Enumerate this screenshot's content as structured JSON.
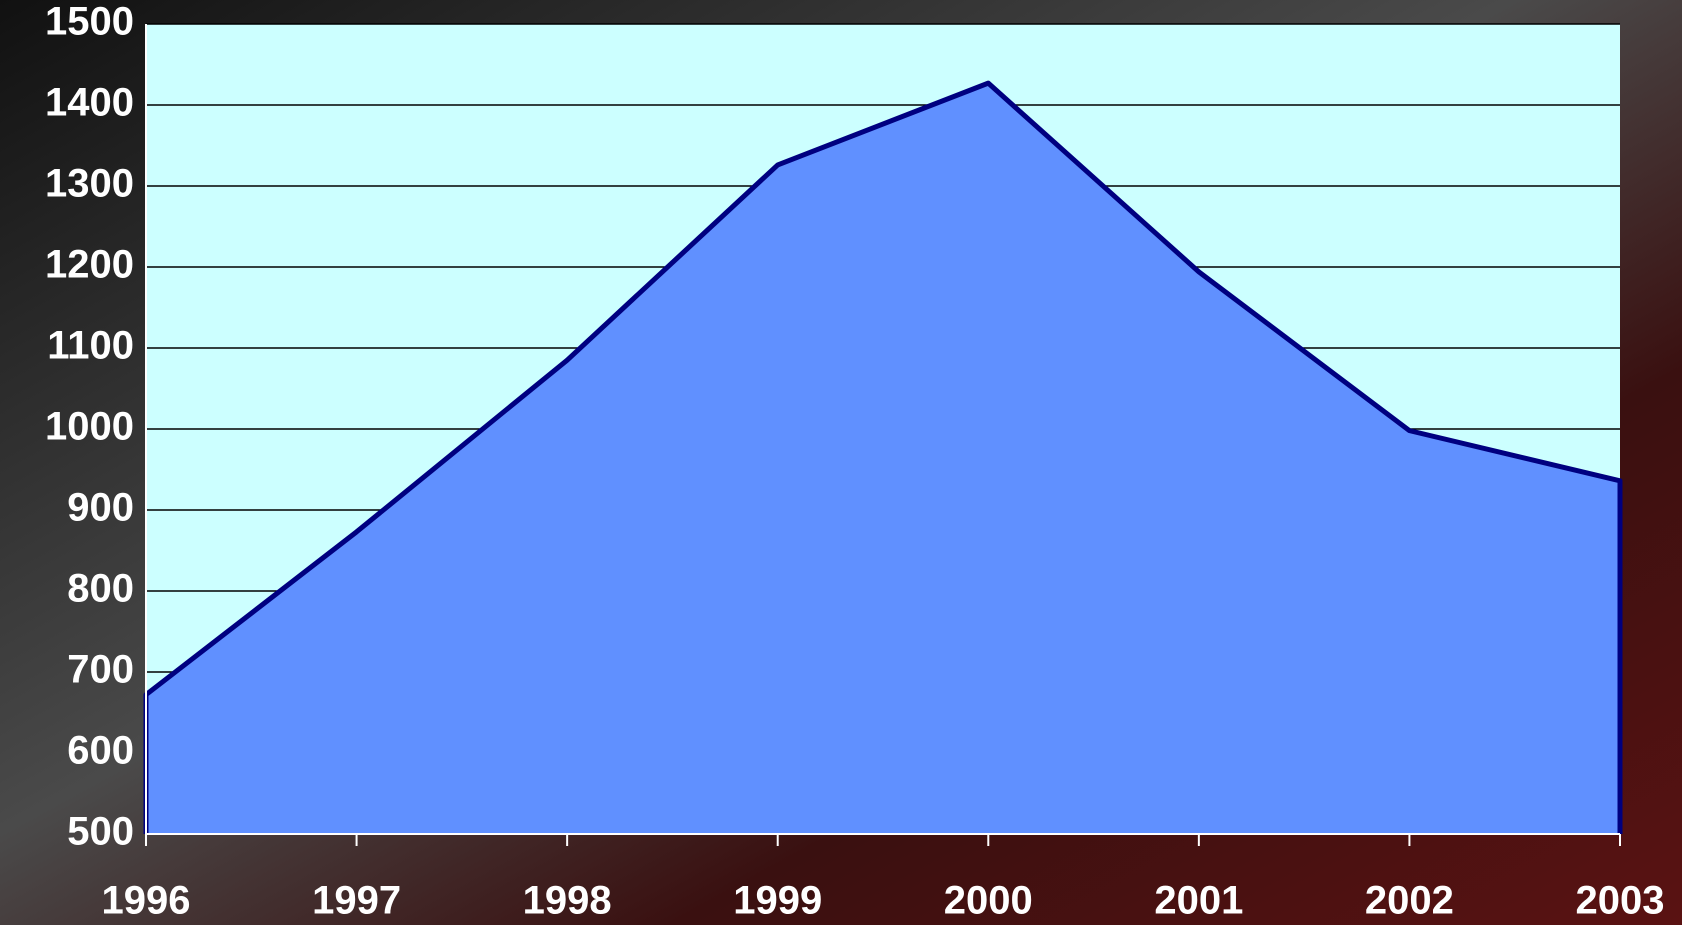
{
  "chart_data": {
    "type": "area",
    "categories": [
      "1996",
      "1997",
      "1998",
      "1999",
      "2000",
      "2001",
      "2002",
      "2003"
    ],
    "values": [
      672,
      873,
      1085,
      1326,
      1427,
      1194,
      998,
      936
    ],
    "color": "#6090ff",
    "line_color": "#000080",
    "plot_background": "#ccffff",
    "ylim": [
      500,
      1500
    ],
    "yticks": [
      500,
      600,
      700,
      800,
      900,
      1000,
      1100,
      1200,
      1300,
      1400,
      1500
    ],
    "grid": true
  }
}
